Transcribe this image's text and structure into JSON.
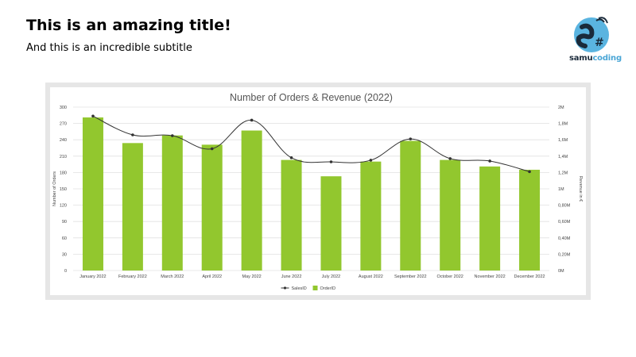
{
  "slide": {
    "title": "This is an amazing title!",
    "subtitle": "And this is an incredible subtitle"
  },
  "logo": {
    "text_part1": "samu",
    "text_part2": "coding",
    "glyph": "S#",
    "colors": {
      "blue": "#5ab4e0",
      "dark": "#1a2a3a"
    }
  },
  "chart_data": {
    "type": "bar+line",
    "title": "Number of Orders & Revenue (2022)",
    "categories": [
      "January 2022",
      "February 2022",
      "March 2022",
      "April 2022",
      "May 2022",
      "June 2022",
      "July 2022",
      "August 2022",
      "September 2022",
      "October 2022",
      "November 2022",
      "December 2022"
    ],
    "series": [
      {
        "name": "SalesID",
        "type": "line",
        "axis": "right",
        "color": "#333333",
        "values": [
          1.89,
          1.66,
          1.65,
          1.49,
          1.84,
          1.38,
          1.33,
          1.35,
          1.61,
          1.37,
          1.34,
          1.21
        ]
      },
      {
        "name": "OrderID",
        "type": "bar",
        "axis": "left",
        "color": "#92c72e",
        "values": [
          281,
          234,
          248,
          231,
          257,
          203,
          173,
          200,
          238,
          203,
          191,
          185
        ]
      }
    ],
    "ylabel": "Number of Orders",
    "y2label": "Revenue in €",
    "ylim": [
      0,
      300
    ],
    "y2lim": [
      0,
      2
    ],
    "yticks": [
      "0",
      "30",
      "60",
      "90",
      "120",
      "150",
      "180",
      "210",
      "240",
      "270",
      "300"
    ],
    "y2ticks": [
      "0M",
      "0,20M",
      "0,40M",
      "0,60M",
      "0,80M",
      "1M",
      "1,2M",
      "1,4M",
      "1,6M",
      "1,8M",
      "2M"
    ],
    "grid": true,
    "legend_position": "bottom-center"
  }
}
